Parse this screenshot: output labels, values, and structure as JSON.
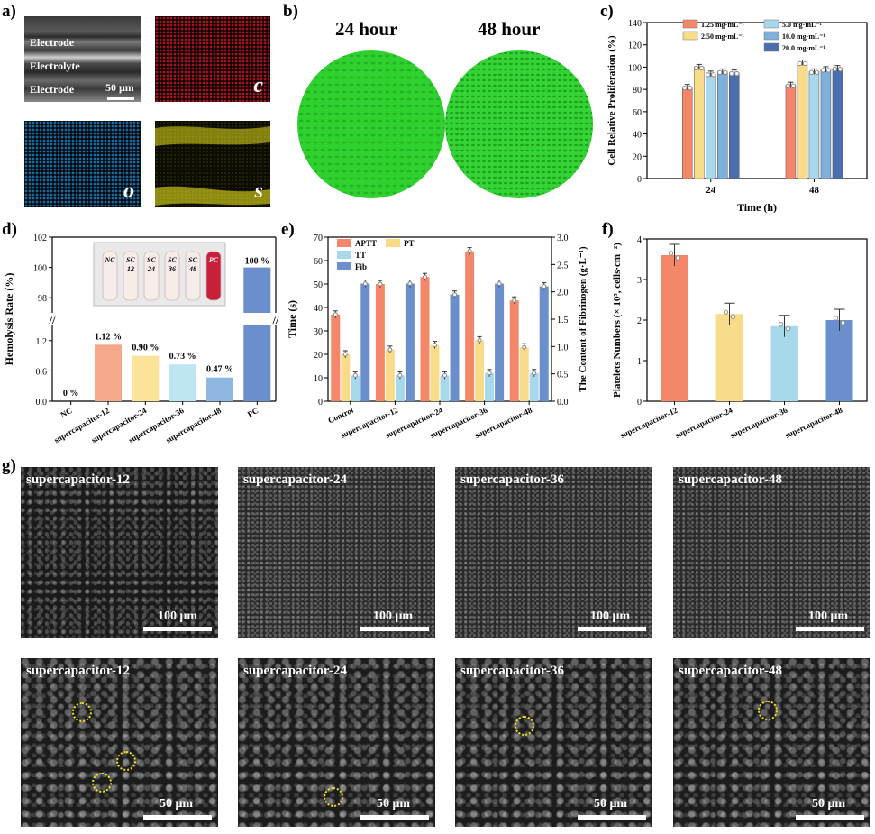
{
  "panels": {
    "a": {
      "letter": "a)",
      "layers": [
        "Electrode",
        "Electrolyte",
        "Electrode"
      ],
      "scale": "50 μm",
      "elements": [
        "c",
        "o",
        "s"
      ],
      "colors": {
        "c": "#d42030",
        "o": "#2a9ad8",
        "s": "#e6e01e"
      }
    },
    "b": {
      "letter": "b)",
      "labels": [
        "24 hour",
        "48 hour"
      ],
      "color": "#2ad42a"
    },
    "c": {
      "letter": "c)",
      "ylabel": "Cell Relative Proliferation (%)",
      "xlabel": "Time (h)",
      "legend": [
        "1.25 mg·mL⁻¹",
        "2.50 mg·mL⁻¹",
        "5.0 mg·mL⁻¹",
        "10.0 mg·mL⁻¹",
        "20.0 mg·mL⁻¹"
      ]
    },
    "d": {
      "letter": "d)",
      "ylabel": "Hemolysis Rate (%)",
      "inset_labels": [
        "NC",
        "SC 12",
        "SC 24",
        "SC 36",
        "SC 48",
        "PC"
      ]
    },
    "e": {
      "letter": "e)",
      "ylabel": "Time (s)",
      "y2label": "The Content of Fibrinogen (g·L⁻¹)",
      "legend": [
        "APTT",
        "Fib",
        "PT",
        "TT"
      ]
    },
    "f": {
      "letter": "f)",
      "ylabel": "Platelets Numbers (× 10⁵, cells·cm⁻²)"
    },
    "g": {
      "letter": "g)",
      "row1": [
        {
          "title": "supercapacitor-12",
          "scale": "100 μm"
        },
        {
          "title": "supercapacitor-24",
          "scale": "100 μm"
        },
        {
          "title": "supercapacitor-36",
          "scale": "100 μm"
        },
        {
          "title": "supercapacitor-48",
          "scale": "100 μm"
        }
      ],
      "row2": [
        {
          "title": "supercapacitor-12",
          "scale": "50 μm"
        },
        {
          "title": "supercapacitor-24",
          "scale": "50 μm"
        },
        {
          "title": "supercapacitor-36",
          "scale": "50 μm"
        },
        {
          "title": "supercapacitor-48",
          "scale": "50 μm"
        }
      ]
    }
  },
  "chart_data": [
    {
      "type": "bar",
      "panel": "c",
      "categories": [
        "24",
        "48"
      ],
      "series": [
        {
          "name": "1.25 mg·mL⁻¹",
          "values": [
            82,
            84
          ],
          "color": "#f4866a"
        },
        {
          "name": "2.50 mg·mL⁻¹",
          "values": [
            100,
            104
          ],
          "color": "#f9dc8a"
        },
        {
          "name": "5.0 mg·mL⁻¹",
          "values": [
            94,
            96
          ],
          "color": "#a8d8ec"
        },
        {
          "name": "10.0 mg·mL⁻¹",
          "values": [
            96,
            98
          ],
          "color": "#7fb0dc"
        },
        {
          "name": "20.0 mg·mL⁻¹",
          "values": [
            95,
            99
          ],
          "color": "#4a6eb0"
        }
      ],
      "xlabel": "Time (h)",
      "ylabel": "Cell Relative Proliferation (%)",
      "ylim": [
        0,
        140
      ],
      "yticks": [
        0,
        20,
        40,
        60,
        80,
        100,
        120,
        140
      ]
    },
    {
      "type": "bar",
      "panel": "d",
      "categories": [
        "NC",
        "supercapacitor-12",
        "supercapacitor-24",
        "supercapacitor-36",
        "supercapacitor-48",
        "PC"
      ],
      "values": [
        0,
        1.12,
        0.9,
        0.73,
        0.47,
        100
      ],
      "labels": [
        "0 %",
        "1.12 %",
        "0.90 %",
        "0.73 %",
        "0.47 %",
        "100 %"
      ],
      "colors": [
        "#ffffff",
        "#f6a88a",
        "#fbe39a",
        "#bfe4f2",
        "#8fb8e0",
        "#6a8fcc"
      ],
      "ylabel": "Hemolysis Rate (%)",
      "yticks_lower": [
        0.0,
        0.6,
        1.2
      ],
      "yticks_upper": [
        98,
        100,
        102
      ],
      "axis_break": true
    },
    {
      "type": "bar",
      "panel": "e",
      "categories": [
        "Control",
        "supercapacitor-12",
        "supercapacitor-24",
        "supercapacitor-36",
        "supercapacitor-48"
      ],
      "series": [
        {
          "name": "APTT",
          "values": [
            37,
            50,
            53,
            64,
            43
          ],
          "axis": "left",
          "color": "#f4866a"
        },
        {
          "name": "PT",
          "values": [
            20,
            22,
            24,
            26,
            23
          ],
          "axis": "left",
          "color": "#f9dc8a"
        },
        {
          "name": "TT",
          "values": [
            11,
            11,
            11,
            12,
            12
          ],
          "axis": "left",
          "color": "#a8d8ec"
        },
        {
          "name": "Fib",
          "values": [
            2.15,
            2.15,
            1.95,
            2.15,
            2.1
          ],
          "axis": "right",
          "color": "#6a8fcc"
        }
      ],
      "ylabel": "Time (s)",
      "ylim": [
        0,
        70
      ],
      "yticks": [
        0,
        10,
        20,
        30,
        40,
        50,
        60,
        70
      ],
      "y2label": "The Content of Fibrinogen (g·L⁻¹)",
      "y2lim": [
        0,
        3.0
      ],
      "y2ticks": [
        "0.0",
        "0.5",
        "1.0",
        "1.5",
        "2.0",
        "2.5",
        "3.0"
      ]
    },
    {
      "type": "bar",
      "panel": "f",
      "categories": [
        "supercapacitor-12",
        "supercapacitor-24",
        "supercapacitor-36",
        "supercapacitor-48"
      ],
      "values": [
        3.6,
        2.15,
        1.85,
        2.0
      ],
      "colors": [
        "#f4866a",
        "#f9dc8a",
        "#a8d8ec",
        "#6a8fcc"
      ],
      "ylabel": "Platelets Numbers (× 10⁵, cells·cm⁻²)",
      "ylim": [
        0,
        4
      ],
      "yticks": [
        0,
        1,
        2,
        3,
        4
      ]
    }
  ]
}
